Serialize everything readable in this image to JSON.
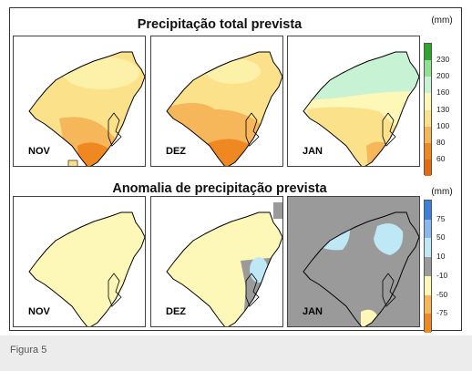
{
  "figure": {
    "caption": "Figura 5"
  },
  "total": {
    "title": "Precipitação total prevista",
    "unit": "(mm)",
    "legend": [
      {
        "label": "230",
        "color": "#2ea62e"
      },
      {
        "label": "200",
        "color": "#8fe08f"
      },
      {
        "label": "160",
        "color": "#c8f2d4"
      },
      {
        "label": "130",
        "color": "#fdf7b8"
      },
      {
        "label": "100",
        "color": "#fbe28a"
      },
      {
        "label": "80",
        "color": "#f6b65a"
      },
      {
        "label": "60",
        "color": "#ef8820"
      },
      {
        "label": "",
        "color": "#e56a10"
      }
    ],
    "panels": [
      {
        "month": "NOV"
      },
      {
        "month": "DEZ"
      },
      {
        "month": "JAN"
      }
    ]
  },
  "anomaly": {
    "title": "Anomalia de precipitação prevista",
    "unit": "(mm)",
    "legend": [
      {
        "label": "75",
        "color": "#3a80d8"
      },
      {
        "label": "50",
        "color": "#8ab8ec"
      },
      {
        "label": "10",
        "color": "#bfe8f6"
      },
      {
        "label": "-10",
        "color": "#9a9a9a"
      },
      {
        "label": "-50",
        "color": "#fdf7b8"
      },
      {
        "label": "-75",
        "color": "#f6b65a"
      },
      {
        "label": "",
        "color": "#ef8820"
      }
    ],
    "panels": [
      {
        "month": "NOV"
      },
      {
        "month": "DEZ"
      },
      {
        "month": "JAN"
      }
    ]
  }
}
